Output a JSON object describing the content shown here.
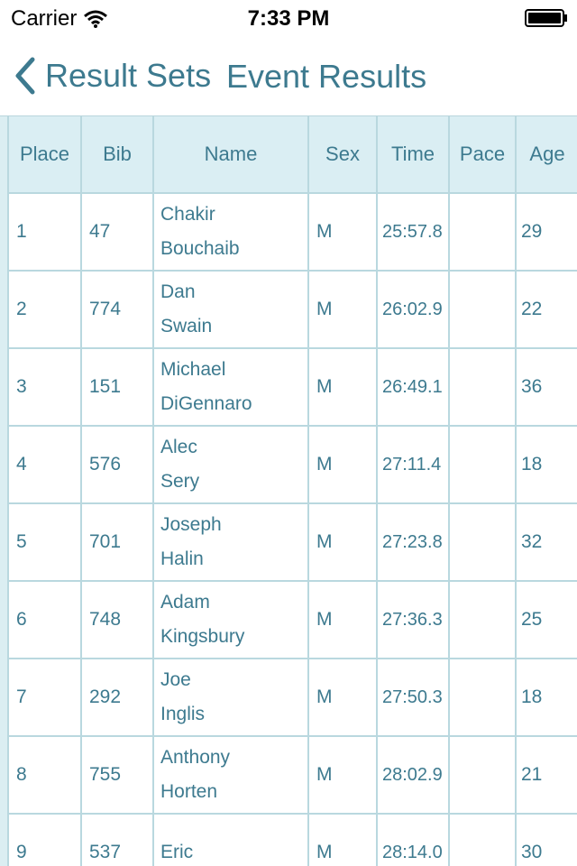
{
  "status_bar": {
    "carrier": "Carrier",
    "time": "7:33 PM"
  },
  "nav": {
    "back_label": "Result Sets",
    "title": "Event Results",
    "accent_color": "#3d7a8f"
  },
  "table": {
    "headers": [
      "Place",
      "Bib",
      "Name",
      "Sex",
      "Time",
      "Pace",
      "Age"
    ],
    "rows": [
      {
        "place": "1",
        "bib": "47",
        "first": "Chakir",
        "last": "Bouchaib",
        "sex": "M",
        "time": "25:57.8",
        "pace": "",
        "age": "29"
      },
      {
        "place": "2",
        "bib": "774",
        "first": "Dan",
        "last": "Swain",
        "sex": "M",
        "time": "26:02.9",
        "pace": "",
        "age": "22"
      },
      {
        "place": "3",
        "bib": "151",
        "first": "Michael",
        "last": "DiGennaro",
        "sex": "M",
        "time": "26:49.1",
        "pace": "",
        "age": "36"
      },
      {
        "place": "4",
        "bib": "576",
        "first": "Alec",
        "last": "Sery",
        "sex": "M",
        "time": "27:11.4",
        "pace": "",
        "age": "18"
      },
      {
        "place": "5",
        "bib": "701",
        "first": "Joseph",
        "last": "Halin",
        "sex": "M",
        "time": "27:23.8",
        "pace": "",
        "age": "32"
      },
      {
        "place": "6",
        "bib": "748",
        "first": "Adam",
        "last": "Kingsbury",
        "sex": "M",
        "time": "27:36.3",
        "pace": "",
        "age": "25"
      },
      {
        "place": "7",
        "bib": "292",
        "first": "Joe",
        "last": "Inglis",
        "sex": "M",
        "time": "27:50.3",
        "pace": "",
        "age": "18"
      },
      {
        "place": "8",
        "bib": "755",
        "first": "Anthony",
        "last": "Horten",
        "sex": "M",
        "time": "28:02.9",
        "pace": "",
        "age": "21"
      },
      {
        "place": "9",
        "bib": "537",
        "first": "Eric",
        "last": "",
        "sex": "M",
        "time": "28:14.0",
        "pace": "",
        "age": "30"
      }
    ]
  }
}
